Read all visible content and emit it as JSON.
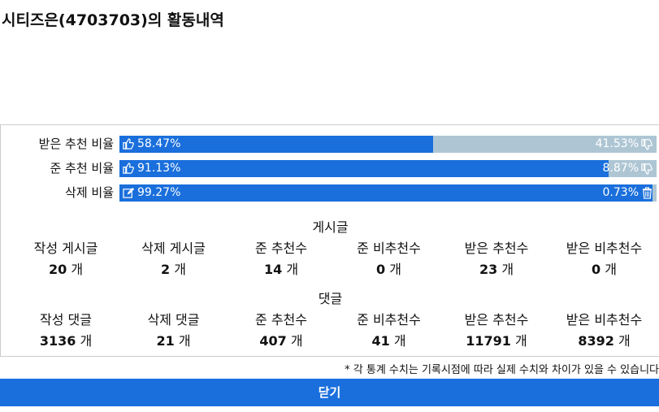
{
  "header": {
    "title": "시티즈은(4703703)의 활동내역"
  },
  "ratios": [
    {
      "label": "받은 추천 비율",
      "left": {
        "value": 58.47,
        "label": "58.47%"
      },
      "right": {
        "value": 41.53,
        "label": "41.53%"
      }
    },
    {
      "label": "준 추천 비율",
      "left": {
        "value": 91.13,
        "label": "91.13%"
      },
      "right": {
        "value": 8.87,
        "label": "8.87%"
      }
    },
    {
      "label": "삭제 비율",
      "left": {
        "value": 99.27,
        "label": "99.27%"
      },
      "right": {
        "value": 0.73,
        "label": "0.73%"
      }
    }
  ],
  "sections": [
    {
      "title": "게시글",
      "items": [
        {
          "label": "작성 게시글",
          "value": 20,
          "unit": "개"
        },
        {
          "label": "삭제 게시글",
          "value": 2,
          "unit": "개"
        },
        {
          "label": "준 추천수",
          "value": 14,
          "unit": "개"
        },
        {
          "label": "준 비추천수",
          "value": 0,
          "unit": "개"
        },
        {
          "label": "받은 추천수",
          "value": 23,
          "unit": "개"
        },
        {
          "label": "받은 비추천수",
          "value": 0,
          "unit": "개"
        }
      ]
    },
    {
      "title": "댓글",
      "items": [
        {
          "label": "작성 댓글",
          "value": 3136,
          "unit": "개"
        },
        {
          "label": "삭제 댓글",
          "value": 21,
          "unit": "개"
        },
        {
          "label": "준 추천수",
          "value": 407,
          "unit": "개"
        },
        {
          "label": "준 비추천수",
          "value": 41,
          "unit": "개"
        },
        {
          "label": "받은 추천수",
          "value": 11791,
          "unit": "개"
        },
        {
          "label": "받은 비추천수",
          "value": 8392,
          "unit": "개"
        }
      ]
    }
  ],
  "footnote": "* 각 통계 수치는 기록시점에 따라 실제 수치와 차이가 있을 수 있습니다",
  "button": "닫기"
}
